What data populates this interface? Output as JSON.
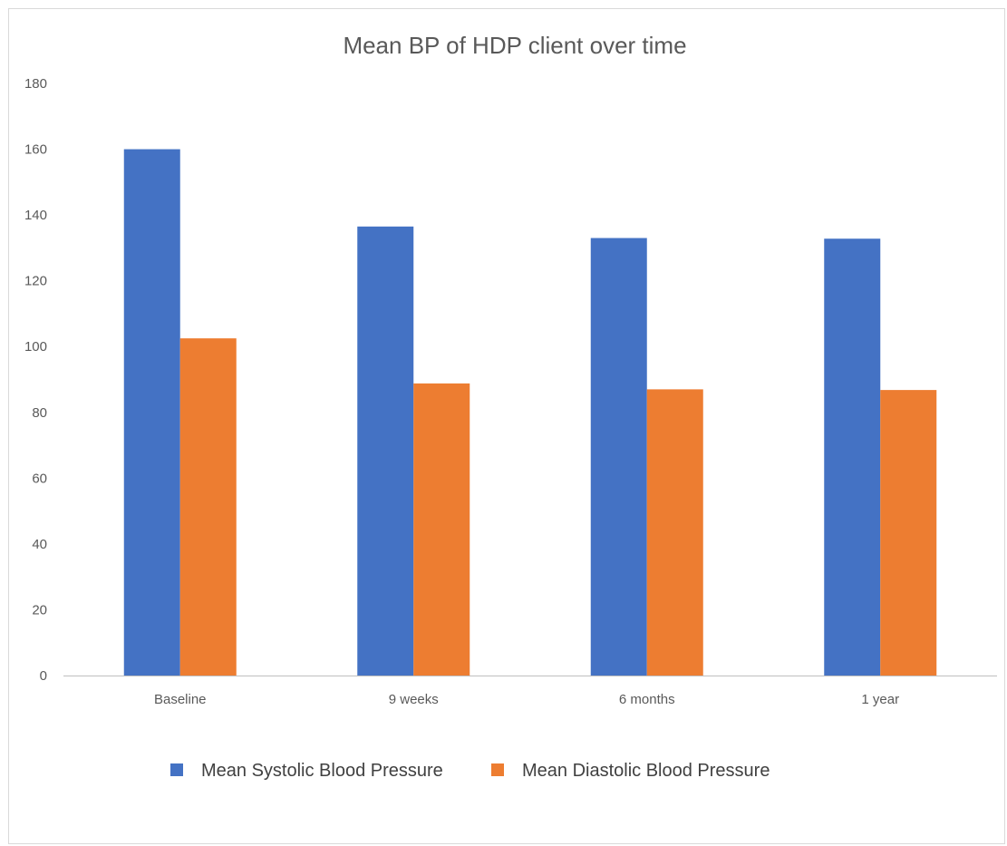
{
  "chart_data": {
    "type": "bar",
    "title": "Mean BP of HDP client over time",
    "xlabel": "",
    "ylabel": "",
    "categories": [
      "Baseline",
      "9 weeks",
      "6 months",
      "1 year"
    ],
    "series": [
      {
        "name": "Mean Systolic Blood Pressure",
        "values": [
          160,
          136.5,
          133,
          132.8
        ],
        "color": "#4472c4"
      },
      {
        "name": "Mean Diastolic Blood Pressure",
        "values": [
          102.5,
          88.8,
          87,
          86.8
        ],
        "color": "#ed7d31"
      }
    ],
    "ylim": [
      0,
      180
    ],
    "yticks": [
      "0",
      "20",
      "40",
      "60",
      "80",
      "100",
      "120",
      "140",
      "160",
      "180"
    ],
    "grid": false,
    "legend": "bottom"
  }
}
